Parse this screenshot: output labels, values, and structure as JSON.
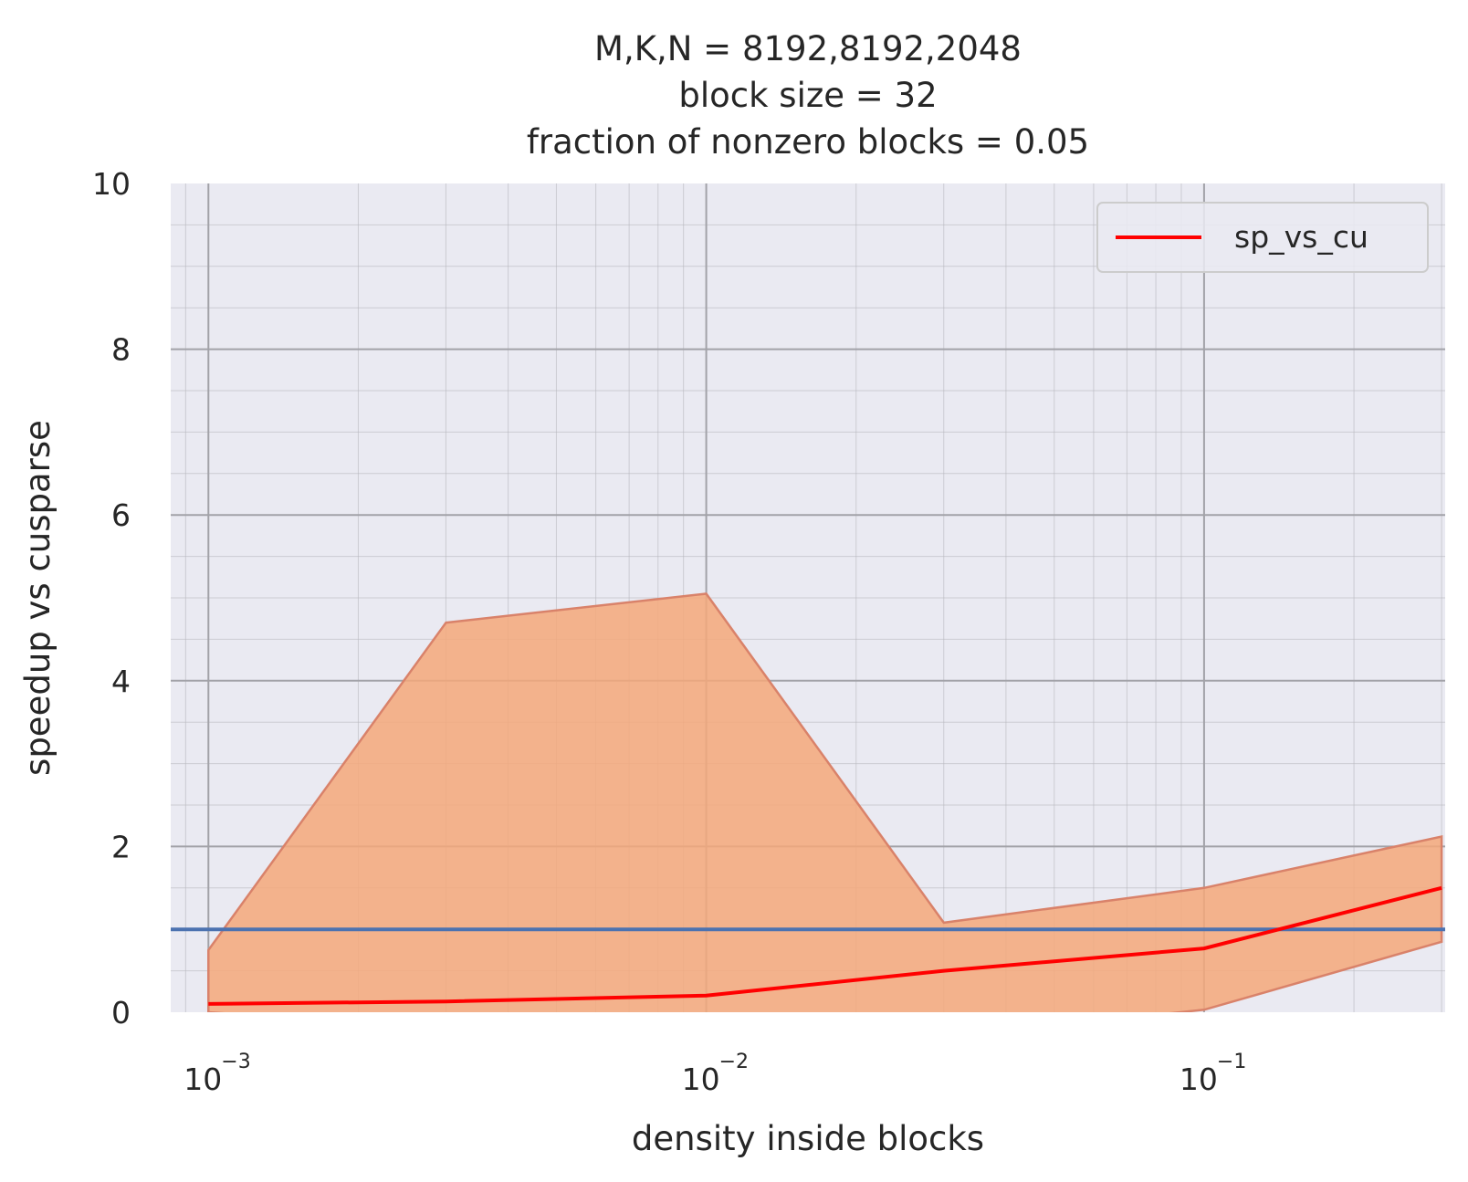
{
  "chart_data": {
    "type": "line",
    "title_lines": [
      "M,K,N = 8192,8192,2048",
      "block size = 32",
      "fraction of nonzero blocks = 0.05"
    ],
    "xlabel": "density inside blocks",
    "ylabel": "speedup vs cusparse",
    "xscale": "log",
    "xlim": [
      0.00084,
      0.305
    ],
    "ylim": [
      0,
      10
    ],
    "x_ticks": [
      {
        "value": 0.001,
        "base": "10",
        "exp": "−3"
      },
      {
        "value": 0.01,
        "base": "10",
        "exp": "−2"
      },
      {
        "value": 0.1,
        "base": "10",
        "exp": "−1"
      }
    ],
    "y_ticks": [
      {
        "value": 0,
        "label": "0"
      },
      {
        "value": 2,
        "label": "2"
      },
      {
        "value": 4,
        "label": "4"
      },
      {
        "value": 6,
        "label": "6"
      },
      {
        "value": 8,
        "label": "8"
      },
      {
        "value": 10,
        "label": "10"
      }
    ],
    "grid": true,
    "legend_position": "top-right",
    "series": [
      {
        "name": "sp_vs_cu",
        "color": "#ff0000",
        "x": [
          0.001,
          0.003,
          0.01,
          0.03,
          0.1,
          0.3
        ],
        "y": [
          0.1,
          0.13,
          0.2,
          0.5,
          0.77,
          1.5
        ]
      }
    ],
    "band": {
      "color": "#f4a87a",
      "edge_color": "#d9826a",
      "x": [
        0.001,
        0.003,
        0.01,
        0.03,
        0.1,
        0.3
      ],
      "upper": [
        0.75,
        4.7,
        5.05,
        1.08,
        1.5,
        2.12
      ],
      "lower": [
        0.0,
        -0.2,
        -0.45,
        -0.3,
        0.03,
        0.85
      ]
    },
    "reference_line": {
      "y": 1.0,
      "color": "#4c72b0"
    }
  }
}
